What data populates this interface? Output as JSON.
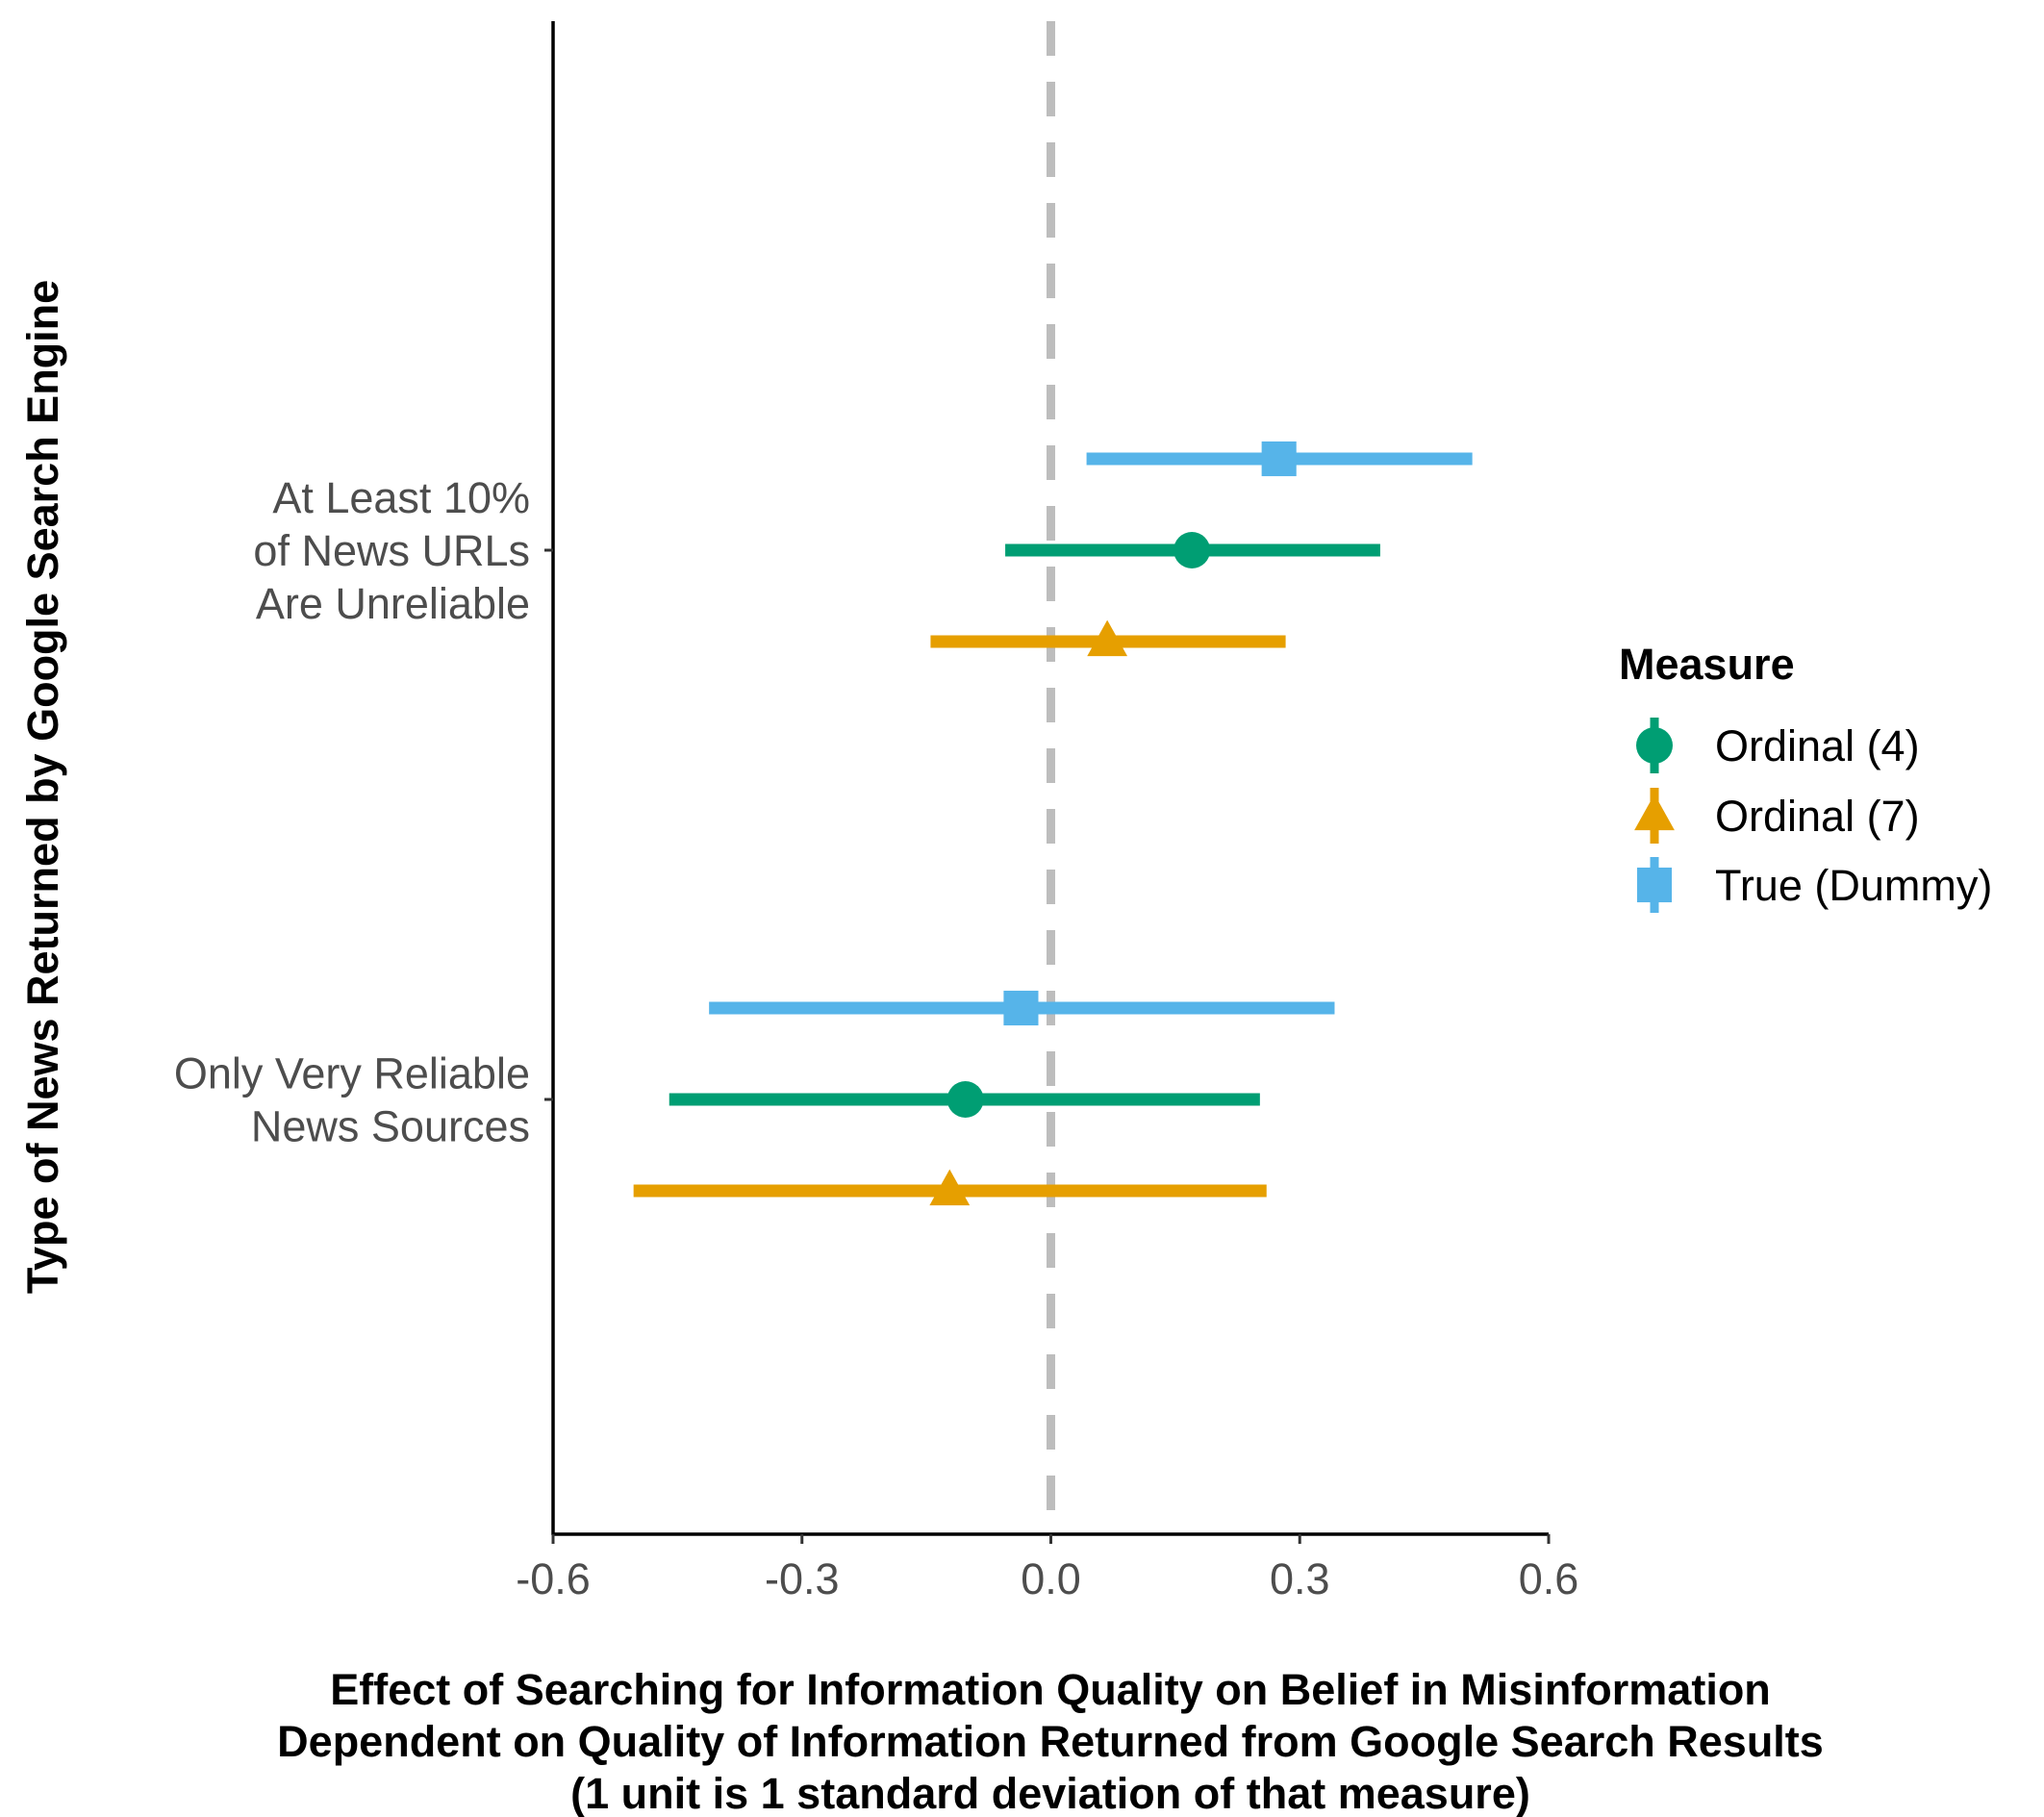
{
  "chart_data": {
    "type": "scatter",
    "subtype": "coefficient-plot-with-horizontal-error-bars",
    "xlabel_lines": [
      "Effect of Searching for Information Quality on Belief in Misinformation",
      "Dependent on Quality of Information Returned from Google Search Results",
      "(1 unit is 1 standard deviation of that measure)"
    ],
    "ylabel": "Type of News Returned by Google Search Engine",
    "xlim": [
      -0.6,
      0.6
    ],
    "xticks": [
      -0.6,
      -0.3,
      0.0,
      0.3,
      0.6
    ],
    "xtick_labels": [
      "-0.6",
      "-0.3",
      "0.0",
      "0.3",
      "0.6"
    ],
    "reference_line": {
      "x": 0.0,
      "style": "dashed",
      "color": "#bdbdbd"
    },
    "grid": false,
    "categories": [
      {
        "key": "unreliable",
        "label_lines": [
          "At Least 10%",
          "of News URLs",
          "Are Unreliable"
        ]
      },
      {
        "key": "reliable",
        "label_lines": [
          "Only Very Reliable",
          "News Sources"
        ]
      }
    ],
    "legend": {
      "title": "Measure",
      "position": "right"
    },
    "series": [
      {
        "name": "Ordinal (4)",
        "color": "#009E73",
        "marker": "circle",
        "points": [
          {
            "category": "unreliable",
            "estimate": 0.17,
            "lower": -0.055,
            "upper": 0.397
          },
          {
            "category": "reliable",
            "estimate": -0.103,
            "lower": -0.46,
            "upper": 0.252
          }
        ]
      },
      {
        "name": "Ordinal (7)",
        "color": "#E69F00",
        "marker": "triangle",
        "points": [
          {
            "category": "unreliable",
            "estimate": 0.068,
            "lower": -0.145,
            "upper": 0.283
          },
          {
            "category": "reliable",
            "estimate": -0.122,
            "lower": -0.503,
            "upper": 0.26
          }
        ]
      },
      {
        "name": "True (Dummy)",
        "color": "#56B4E9",
        "marker": "square",
        "points": [
          {
            "category": "unreliable",
            "estimate": 0.275,
            "lower": 0.043,
            "upper": 0.508
          },
          {
            "category": "reliable",
            "estimate": -0.036,
            "lower": -0.412,
            "upper": 0.342
          }
        ]
      }
    ]
  }
}
